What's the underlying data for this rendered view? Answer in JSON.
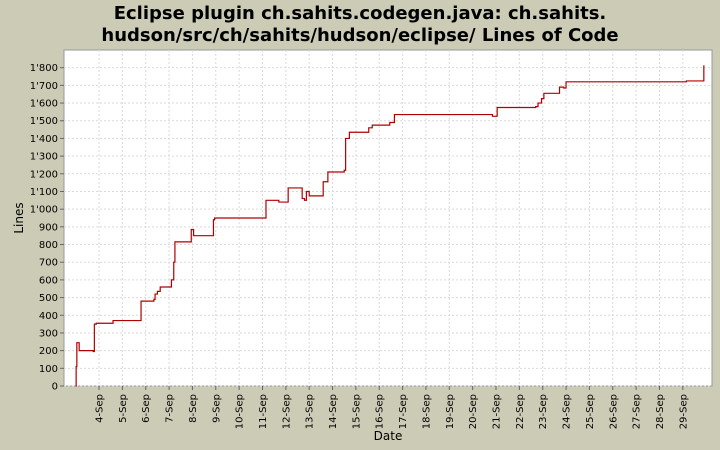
{
  "chart_data": {
    "type": "line",
    "title_lines": [
      "Eclipse plugin ch.sahits.codegen.java: ch.sahits.",
      "hudson/src/ch/sahits/hudson/eclipse/ Lines of Code"
    ],
    "xlabel": "Date",
    "ylabel": "Lines",
    "ylim": [
      0,
      1900
    ],
    "yticks": [
      {
        "value": 0,
        "label": "0"
      },
      {
        "value": 100,
        "label": "100"
      },
      {
        "value": 200,
        "label": "200"
      },
      {
        "value": 300,
        "label": "300"
      },
      {
        "value": 400,
        "label": "400"
      },
      {
        "value": 500,
        "label": "500"
      },
      {
        "value": 600,
        "label": "600"
      },
      {
        "value": 700,
        "label": "700"
      },
      {
        "value": 800,
        "label": "800"
      },
      {
        "value": 900,
        "label": "900"
      },
      {
        "value": 1000,
        "label": "1'000"
      },
      {
        "value": 1100,
        "label": "1'100"
      },
      {
        "value": 1200,
        "label": "1'200"
      },
      {
        "value": 1300,
        "label": "1'300"
      },
      {
        "value": 1400,
        "label": "1'400"
      },
      {
        "value": 1500,
        "label": "1'500"
      },
      {
        "value": 1600,
        "label": "1'600"
      },
      {
        "value": 1700,
        "label": "1'700"
      },
      {
        "value": 1800,
        "label": "1'800"
      }
    ],
    "xrange": [
      2.5,
      30.25
    ],
    "xticks": [
      {
        "value": 4,
        "label": "4-Sep"
      },
      {
        "value": 5,
        "label": "5-Sep"
      },
      {
        "value": 6,
        "label": "6-Sep"
      },
      {
        "value": 7,
        "label": "7-Sep"
      },
      {
        "value": 8,
        "label": "8-Sep"
      },
      {
        "value": 9,
        "label": "9-Sep"
      },
      {
        "value": 10,
        "label": "10-Sep"
      },
      {
        "value": 11,
        "label": "11-Sep"
      },
      {
        "value": 12,
        "label": "12-Sep"
      },
      {
        "value": 13,
        "label": "13-Sep"
      },
      {
        "value": 14,
        "label": "14-Sep"
      },
      {
        "value": 15,
        "label": "15-Sep"
      },
      {
        "value": 16,
        "label": "16-Sep"
      },
      {
        "value": 17,
        "label": "17-Sep"
      },
      {
        "value": 18,
        "label": "18-Sep"
      },
      {
        "value": 19,
        "label": "19-Sep"
      },
      {
        "value": 20,
        "label": "20-Sep"
      },
      {
        "value": 21,
        "label": "21-Sep"
      },
      {
        "value": 22,
        "label": "22-Sep"
      },
      {
        "value": 23,
        "label": "23-Sep"
      },
      {
        "value": 24,
        "label": "24-Sep"
      },
      {
        "value": 25,
        "label": "25-Sep"
      },
      {
        "value": 26,
        "label": "26-Sep"
      },
      {
        "value": 27,
        "label": "27-Sep"
      },
      {
        "value": 28,
        "label": "28-Sep"
      },
      {
        "value": 29,
        "label": "29-Sep"
      }
    ],
    "grid": true,
    "legend": "none",
    "series": [
      {
        "color": "#b00000",
        "step": true,
        "points": [
          [
            3.0,
            0
          ],
          [
            3.02,
            110
          ],
          [
            3.05,
            245
          ],
          [
            3.15,
            200
          ],
          [
            3.75,
            195
          ],
          [
            3.8,
            350
          ],
          [
            3.88,
            355
          ],
          [
            4.6,
            370
          ],
          [
            5.8,
            480
          ],
          [
            6.35,
            490
          ],
          [
            6.4,
            520
          ],
          [
            6.5,
            535
          ],
          [
            6.62,
            560
          ],
          [
            7.1,
            600
          ],
          [
            7.2,
            700
          ],
          [
            7.25,
            815
          ],
          [
            7.95,
            885
          ],
          [
            8.05,
            850
          ],
          [
            8.9,
            940
          ],
          [
            8.95,
            950
          ],
          [
            11.15,
            1050
          ],
          [
            11.7,
            1040
          ],
          [
            12.1,
            1120
          ],
          [
            12.7,
            1060
          ],
          [
            12.8,
            1050
          ],
          [
            12.88,
            1100
          ],
          [
            13.0,
            1075
          ],
          [
            13.6,
            1155
          ],
          [
            13.8,
            1210
          ],
          [
            14.5,
            1220
          ],
          [
            14.56,
            1400
          ],
          [
            14.72,
            1435
          ],
          [
            15.55,
            1460
          ],
          [
            15.7,
            1475
          ],
          [
            16.45,
            1490
          ],
          [
            16.65,
            1535
          ],
          [
            20.85,
            1525
          ],
          [
            21.05,
            1575
          ],
          [
            22.7,
            1580
          ],
          [
            22.8,
            1600
          ],
          [
            22.95,
            1625
          ],
          [
            23.05,
            1655
          ],
          [
            23.72,
            1690
          ],
          [
            23.9,
            1685
          ],
          [
            24.0,
            1720
          ],
          [
            29.15,
            1725
          ],
          [
            29.9,
            1810
          ],
          [
            29.93,
            1810
          ]
        ]
      }
    ]
  }
}
